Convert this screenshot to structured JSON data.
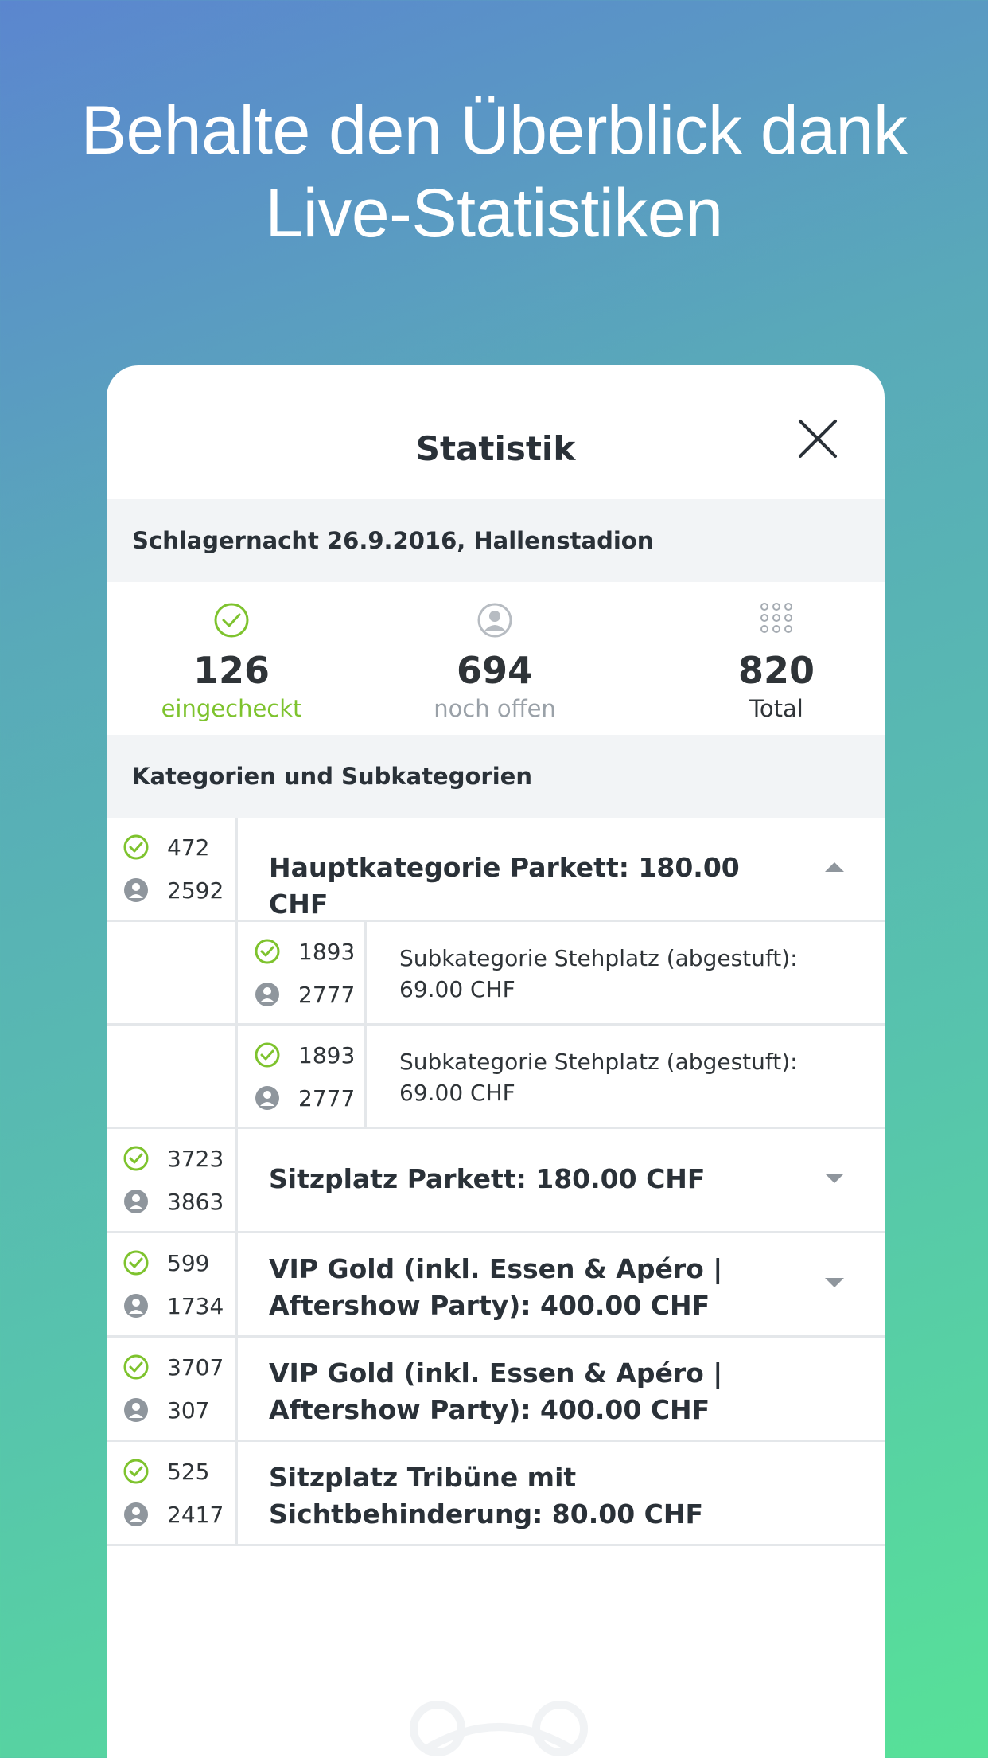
{
  "promo": {
    "headline_line1": "Behalte den Überblick dank",
    "headline_line2": "Live-Statistiken"
  },
  "dialog": {
    "title": "Statistik",
    "close_icon": "close-icon",
    "event_name": "Schlagernacht 26.9.2016, Hallenstadion",
    "summary": {
      "checked_in": {
        "value": "126",
        "label": "eingecheckt",
        "icon": "check-circle-icon",
        "color": "#7ec32e"
      },
      "open": {
        "value": "694",
        "label": "noch offen",
        "icon": "user-circle-icon",
        "color": "#9aa1a8"
      },
      "total": {
        "value": "820",
        "label": "Total",
        "icon": "grid-dots-icon",
        "color": "#2f3438"
      }
    },
    "categories_heading": "Kategorien und Subkategorien",
    "categories": [
      {
        "checked": "472",
        "open": "2592",
        "label": "Hauptkategorie Parkett: 180.00 CHF",
        "chevron": "chevron-up-icon"
      },
      {
        "checked": "1893",
        "open": "2777",
        "label": "Subkategorie Stehplatz (abgestuft): 69.00 CHF",
        "sub": true
      },
      {
        "checked": "1893",
        "open": "2777",
        "label": "Subkategorie Stehplatz (abgestuft): 69.00 CHF",
        "sub": true
      },
      {
        "checked": "3723",
        "open": "3863",
        "label": "Sitzplatz Parkett: 180.00 CHF",
        "chevron": "chevron-down-icon"
      },
      {
        "checked": "599",
        "open": "1734",
        "label": "VIP Gold (inkl. Essen & Apéro | Aftershow Party): 400.00 CHF",
        "chevron": "chevron-down-icon"
      },
      {
        "checked": "3707",
        "open": "307",
        "label": "VIP Gold (inkl. Essen & Apéro | Aftershow Party): 400.00 CHF"
      },
      {
        "checked": "525",
        "open": "2417",
        "label": "Sitzplatz Tribüne mit Sichtbehinderung: 80.00 CHF"
      }
    ]
  },
  "colors": {
    "accent_green": "#7ec32e",
    "muted_gray": "#9aa1a8",
    "text_dark": "#2a3138",
    "section_bg": "#f2f4f6"
  }
}
